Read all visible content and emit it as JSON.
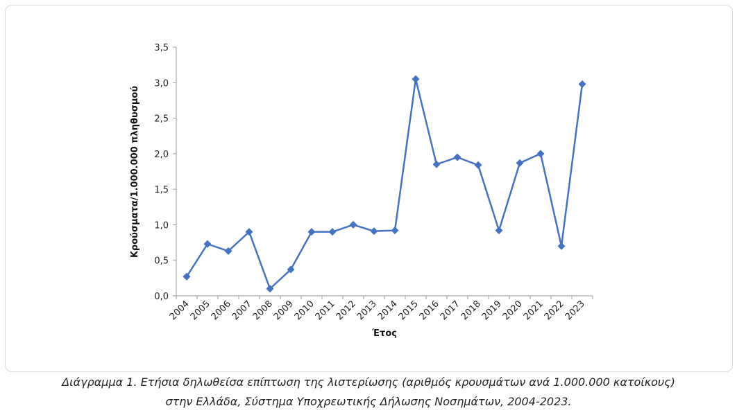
{
  "caption": {
    "line1": "Διάγραμμα 1. Ετήσια δηλωθείσα επίπτωση της λιστερίωσης (αριθμός κρουσμάτων ανά 1.000.000 κατοίκους)",
    "line2": "στην Ελλάδα, Σύστημα Υποχρεωτικής Δήλωσης Νοσημάτων, 2004-2023."
  },
  "chart_data": {
    "type": "line",
    "xlabel": "Έτος",
    "ylabel": "Κρούσματα/1.000.000 πληθυσμού",
    "categories": [
      "2004",
      "2005",
      "2006",
      "2007",
      "2008",
      "2009",
      "2010",
      "2011",
      "2012",
      "2013",
      "2014",
      "2015",
      "2016",
      "2017",
      "2018",
      "2019",
      "2020",
      "2021",
      "2022",
      "2023"
    ],
    "y_ticks": [
      "0,0",
      "0,5",
      "1,0",
      "1,5",
      "2,0",
      "2,5",
      "3,0",
      "3,5"
    ],
    "ylim": [
      0,
      3.5
    ],
    "series": [
      {
        "values": [
          0.27,
          0.73,
          0.63,
          0.9,
          0.1,
          0.37,
          0.9,
          0.9,
          1.0,
          0.91,
          0.92,
          3.05,
          1.85,
          1.95,
          1.84,
          0.92,
          1.87,
          2.0,
          0.7,
          2.98
        ]
      }
    ],
    "colors": {
      "series": "#4472C4",
      "axis": "#9a9a9a"
    },
    "grid": false,
    "marker": "diamond"
  }
}
